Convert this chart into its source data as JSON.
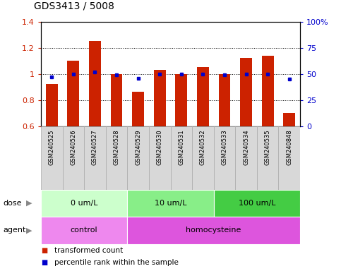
{
  "title": "GDS3413 / 5008",
  "samples": [
    "GSM240525",
    "GSM240526",
    "GSM240527",
    "GSM240528",
    "GSM240529",
    "GSM240530",
    "GSM240531",
    "GSM240532",
    "GSM240533",
    "GSM240534",
    "GSM240535",
    "GSM240848"
  ],
  "red_values": [
    0.92,
    1.1,
    1.25,
    1.0,
    0.865,
    1.03,
    1.0,
    1.05,
    1.0,
    1.12,
    1.14,
    0.7
  ],
  "blue_values_pct": [
    47,
    50,
    52,
    49,
    46,
    50,
    50,
    50,
    49,
    50,
    50,
    45
  ],
  "ylim_left": [
    0.6,
    1.4
  ],
  "ylim_right": [
    0,
    100
  ],
  "yticks_left": [
    0.6,
    0.8,
    1.0,
    1.2,
    1.4
  ],
  "ytick_labels_left": [
    "0.6",
    "0.8",
    "1",
    "1.2",
    "1.4"
  ],
  "yticks_right": [
    0,
    25,
    50,
    75,
    100
  ],
  "ytick_labels_right": [
    "0",
    "25",
    "50",
    "75",
    "100%"
  ],
  "bar_color": "#cc2200",
  "blue_color": "#0000cc",
  "bar_width": 0.55,
  "dose_groups": [
    {
      "label": "0 um/L",
      "start": 0,
      "end": 4,
      "color": "#ccffcc"
    },
    {
      "label": "10 um/L",
      "start": 4,
      "end": 8,
      "color": "#88ee88"
    },
    {
      "label": "100 um/L",
      "start": 8,
      "end": 12,
      "color": "#44cc44"
    }
  ],
  "agent_groups": [
    {
      "label": "control",
      "start": 0,
      "end": 4,
      "color": "#ee88ee"
    },
    {
      "label": "homocysteine",
      "start": 4,
      "end": 12,
      "color": "#dd55dd"
    }
  ],
  "dose_label": "dose",
  "agent_label": "agent",
  "legend_red": "transformed count",
  "legend_blue": "percentile rank within the sample",
  "bg_color": "#ffffff",
  "tick_label_color_left": "#cc2200",
  "tick_label_color_right": "#0000cc",
  "sample_bg_color": "#d8d8d8",
  "sample_border_color": "#aaaaaa"
}
